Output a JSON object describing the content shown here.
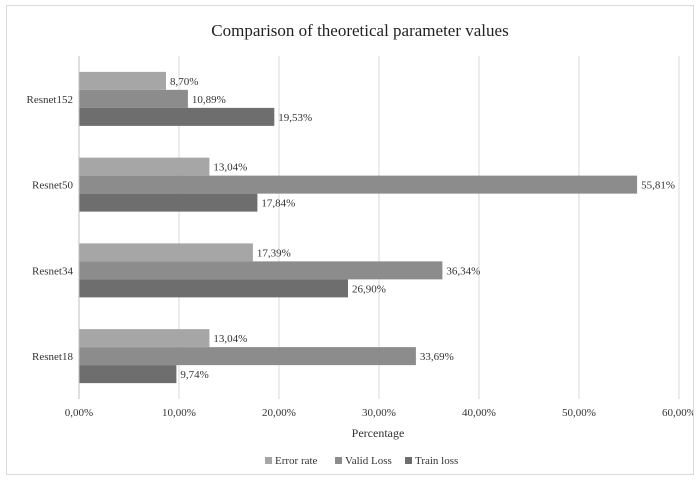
{
  "chart_data": {
    "type": "bar",
    "orientation": "horizontal",
    "title": "Comparison of theoretical parameter values",
    "xlabel": "Percentage",
    "ylabel": "",
    "xlim": [
      0,
      60
    ],
    "x_ticks": [
      "0,00%",
      "10,00%",
      "20,00%",
      "30,00%",
      "40,00%",
      "50,00%",
      "60,00%"
    ],
    "grid": true,
    "legend_position": "bottom",
    "categories": [
      "Resnet152",
      "Resnet50",
      "Resnet34",
      "Resnet18"
    ],
    "series": [
      {
        "name": "Error rate",
        "color": "#a6a6a6",
        "values": [
          8.7,
          13.04,
          17.39,
          13.04
        ],
        "labels": [
          "8,70%",
          "13,04%",
          "17,39%",
          "13,04%"
        ]
      },
      {
        "name": "Valid Loss",
        "color": "#8c8c8c",
        "values": [
          10.89,
          55.81,
          36.34,
          33.69
        ],
        "labels": [
          "10,89%",
          "55,81%",
          "36,34%",
          "33,69%"
        ]
      },
      {
        "name": "Train loss",
        "color": "#6e6e6e",
        "values": [
          19.53,
          17.84,
          26.9,
          9.74
        ],
        "labels": [
          "19,53%",
          "17,84%",
          "26,90%",
          "9,74%"
        ]
      }
    ]
  }
}
